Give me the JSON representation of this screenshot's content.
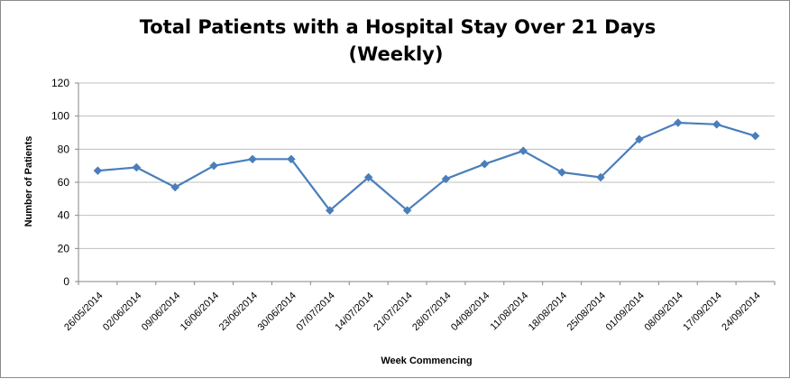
{
  "chart_data": {
    "type": "line",
    "title": "Total Patients with a Hospital Stay Over 21 Days",
    "subtitle": "(Weekly)",
    "xlabel": "Week Commencing",
    "ylabel": "Number of Patients",
    "ylim": [
      0,
      120
    ],
    "yticks": [
      0,
      20,
      40,
      60,
      80,
      100,
      120
    ],
    "grid": true,
    "legend": "none",
    "categories": [
      "26/05/2014",
      "02/06/2014",
      "09/06/2014",
      "16/06/2014",
      "23/06/2014",
      "30/06/2014",
      "07/07/2014",
      "14/07/2014",
      "21/07/2014",
      "28/07/2014",
      "04/08/2014",
      "11/08/2014",
      "18/08/2014",
      "25/08/2014",
      "01/09/2014",
      "08/09/2014",
      "17/09/2014",
      "24/09/2014"
    ],
    "series": [
      {
        "values": [
          67,
          69,
          57,
          70,
          74,
          74,
          43,
          63,
          43,
          62,
          71,
          79,
          66,
          63,
          86,
          96,
          95,
          88
        ],
        "color": "#4a7ebb",
        "marker": "diamond"
      }
    ]
  }
}
